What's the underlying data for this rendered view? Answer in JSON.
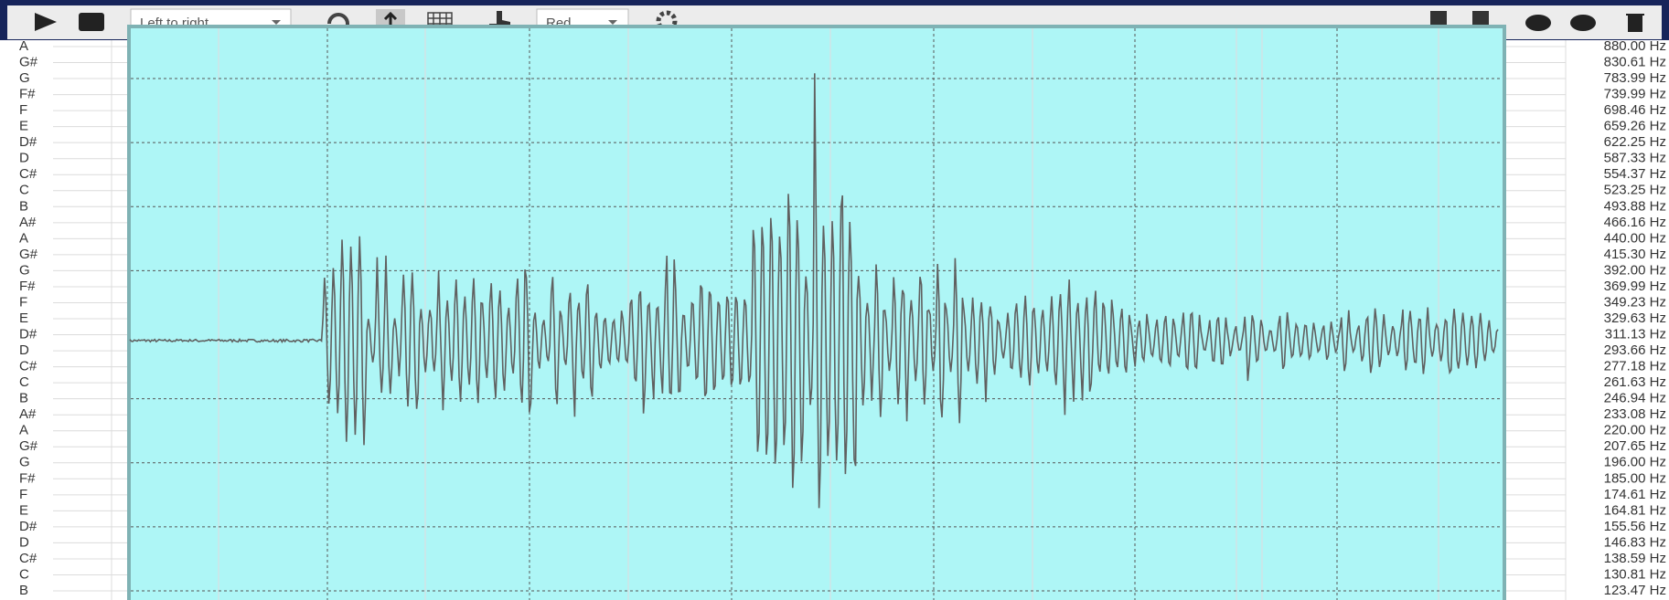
{
  "toolbar": {
    "direction": "Left to right",
    "color": "Red"
  },
  "notes": [
    "A",
    "G#",
    "G",
    "F#",
    "F",
    "E",
    "D#",
    "D",
    "C#",
    "C",
    "B",
    "A#",
    "A",
    "G#",
    "G",
    "F#",
    "F",
    "E",
    "D#",
    "D",
    "C#",
    "C",
    "B",
    "A#",
    "A",
    "G#",
    "G",
    "F#",
    "F",
    "E",
    "D#",
    "D",
    "C#",
    "C",
    "B"
  ],
  "frequencies": [
    "880.00 Hz",
    "830.61 Hz",
    "783.99 Hz",
    "739.99 Hz",
    "698.46 Hz",
    "659.26 Hz",
    "622.25 Hz",
    "587.33 Hz",
    "554.37 Hz",
    "523.25 Hz",
    "493.88 Hz",
    "466.16 Hz",
    "440.00 Hz",
    "415.30 Hz",
    "392.00 Hz",
    "369.99 Hz",
    "349.23 Hz",
    "329.63 Hz",
    "311.13 Hz",
    "293.66 Hz",
    "277.18 Hz",
    "261.63 Hz",
    "246.94 Hz",
    "233.08 Hz",
    "220.00 Hz",
    "207.65 Hz",
    "196.00 Hz",
    "185.00 Hz",
    "174.61 Hz",
    "164.81 Hz",
    "155.56 Hz",
    "146.83 Hz",
    "138.59 Hz",
    "130.81 Hz",
    "123.47 Hz"
  ]
}
